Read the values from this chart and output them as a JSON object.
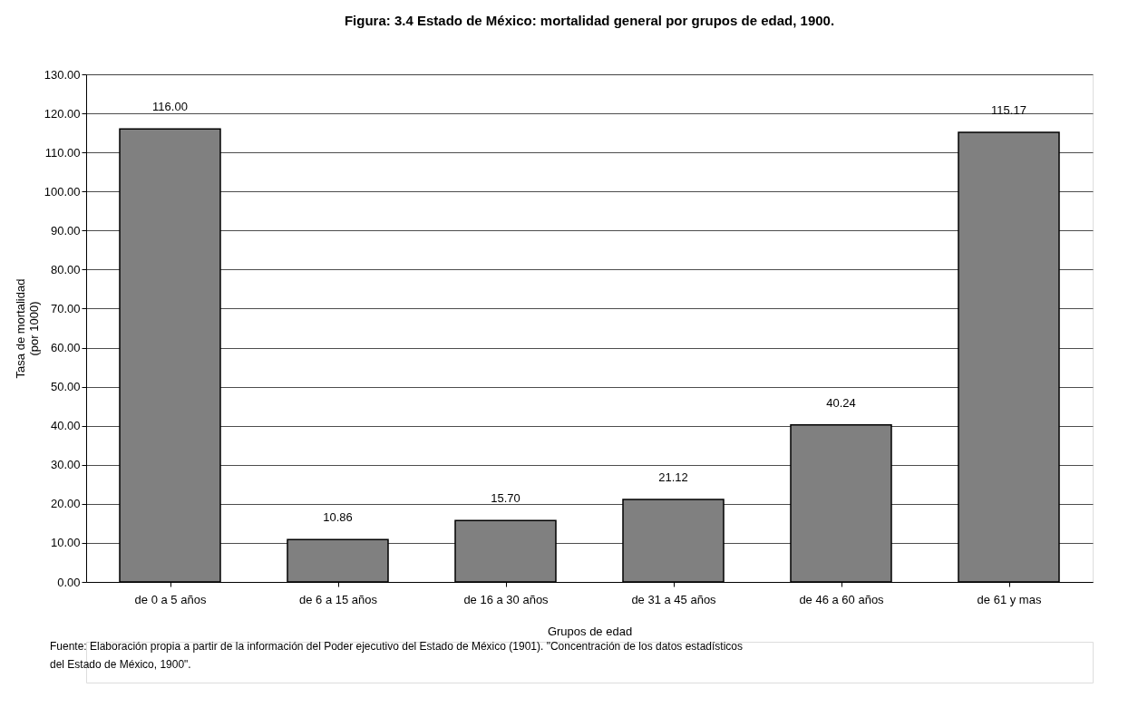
{
  "chart_data": {
    "type": "bar",
    "title": "Figura: 3.4 Estado de México: mortalidad general por  grupos de edad, 1900.",
    "xlabel": "Grupos de edad",
    "ylabel": "Tasa de mortalidad\n(por 1000)",
    "categories": [
      "de 0 a 5 años",
      "de 6 a 15 años",
      "de 16 a 30 años",
      "de 31 a 45 años",
      "de 46 a 60 años",
      "de 61 y mas"
    ],
    "values": [
      116.0,
      10.86,
      15.7,
      21.12,
      40.24,
      115.17
    ],
    "value_labels": [
      "116.00",
      "10.86",
      "15.70",
      "21.12",
      "40.24",
      "115.17"
    ],
    "color": "#808080",
    "ylim": [
      0,
      130
    ],
    "yticks": [
      {
        "value": 0,
        "label": "0.00"
      },
      {
        "value": 10,
        "label": "10.00"
      },
      {
        "value": 20,
        "label": "20.00"
      },
      {
        "value": 30,
        "label": "30.00"
      },
      {
        "value": 40,
        "label": "40.00"
      },
      {
        "value": 50,
        "label": "50.00"
      },
      {
        "value": 60,
        "label": "60.00"
      },
      {
        "value": 70,
        "label": "70.00"
      },
      {
        "value": 80,
        "label": "80.00"
      },
      {
        "value": 90,
        "label": "90.00"
      },
      {
        "value": 100,
        "label": "100.00"
      },
      {
        "value": 110,
        "label": "110.00"
      },
      {
        "value": 120,
        "label": "120.00"
      },
      {
        "value": 130,
        "label": "130.00"
      }
    ],
    "grid": "y",
    "annotations": [
      "Fuente: Elaboración propia a partir de la información del Poder ejecutivo del Estado de México (1901). \"Concentración de los datos estadísticos\ndel Estado de México, 1900\"."
    ]
  }
}
